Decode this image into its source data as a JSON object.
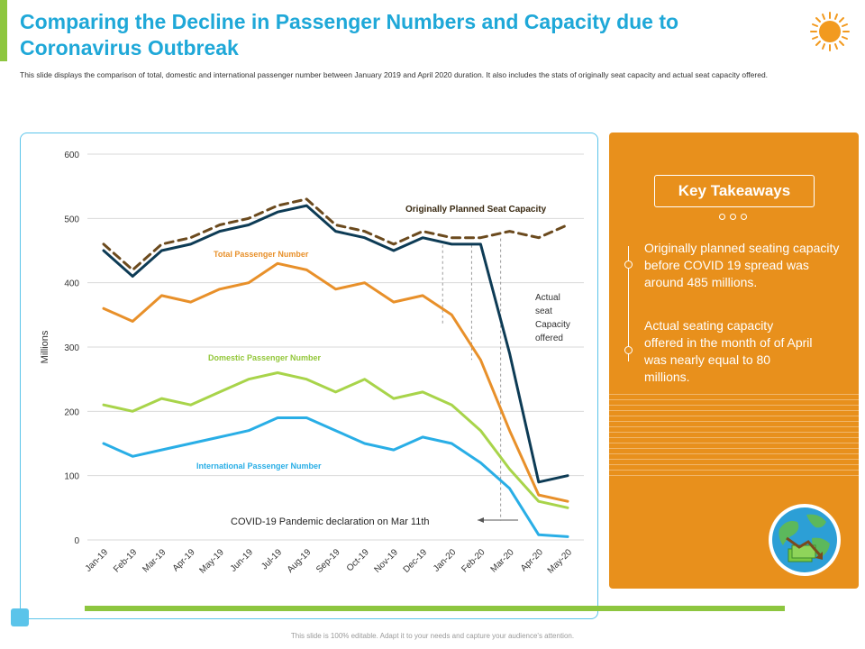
{
  "slide": {
    "title": "Comparing the Decline in Passenger Numbers and Capacity due to Coronavirus Outbreak",
    "subtitle": "This slide displays the comparison of total, domestic and international passenger number between January 2019 and April 2020 duration. It also includes the stats of originally seat capacity and actual seat capacity offered.",
    "footer": "This slide is 100% editable. Adapt it to your needs and capture your audience's attention."
  },
  "panel": {
    "heading": "Key Takeaways",
    "takeaways": [
      "Originally planned seating capacity before COVID 19 spread was around 485 millions.",
      "Actual seating capacity offered in the month of of April was nearly equal to 80 millions."
    ]
  },
  "chart_data": {
    "type": "line",
    "title": "",
    "xlabel": "",
    "ylabel": "Millions",
    "ylim": [
      0,
      600
    ],
    "yticks": [
      0,
      100,
      200,
      300,
      400,
      500,
      600
    ],
    "grid": true,
    "categories": [
      "Jan-19",
      "Feb-19",
      "Mar-19",
      "Apr-19",
      "May-19",
      "Jun-19",
      "Jul-19",
      "Aug-19",
      "Sep-19",
      "Oct-19",
      "Nov-19",
      "Dec-19",
      "Jan-20",
      "Feb-20",
      "Mar-20",
      "Apr-20",
      "May-20"
    ],
    "series": [
      {
        "name": "Originally Planned Seat Capacity",
        "color": "#6b4a1e",
        "style": "dashed",
        "values": [
          460,
          420,
          460,
          470,
          490,
          500,
          520,
          530,
          490,
          480,
          460,
          480,
          470,
          470,
          480,
          470,
          490
        ]
      },
      {
        "name": "Actual seat Capacity offered",
        "color": "#0d3b55",
        "style": "solid",
        "values": [
          450,
          410,
          450,
          460,
          480,
          490,
          510,
          520,
          480,
          470,
          450,
          470,
          460,
          460,
          290,
          90,
          100
        ]
      },
      {
        "name": "Total Passenger Number",
        "color": "#e8902a",
        "style": "solid",
        "values": [
          360,
          340,
          380,
          370,
          390,
          400,
          430,
          420,
          390,
          400,
          370,
          380,
          350,
          280,
          170,
          70,
          60
        ]
      },
      {
        "name": "Domestic Passenger Number",
        "color": "#a8d44a",
        "style": "solid",
        "values": [
          210,
          200,
          220,
          210,
          230,
          250,
          260,
          250,
          230,
          250,
          220,
          230,
          210,
          170,
          110,
          60,
          50
        ]
      },
      {
        "name": "International Passenger Number",
        "color": "#29aee6",
        "style": "solid",
        "values": [
          150,
          130,
          140,
          150,
          160,
          170,
          190,
          190,
          170,
          150,
          140,
          160,
          150,
          120,
          80,
          8,
          5
        ]
      }
    ],
    "labels": {
      "capacity_planned": "Originally  Planned  Seat Capacity",
      "capacity_actual": [
        "Actual",
        "seat",
        "Capacity",
        "offered"
      ],
      "total": "Total Passenger Number",
      "domestic": "Domestic Passenger Number",
      "international": "International Passenger Number"
    },
    "annotation": "COVID-19  Pandemic declaration on Mar 11th",
    "vertical_markers": [
      "Jan-20",
      "Feb-20",
      "Mar-20"
    ]
  },
  "colors": {
    "accent_blue": "#1fa8d8",
    "accent_green": "#8dc63f",
    "panel_orange": "#e8901c"
  }
}
